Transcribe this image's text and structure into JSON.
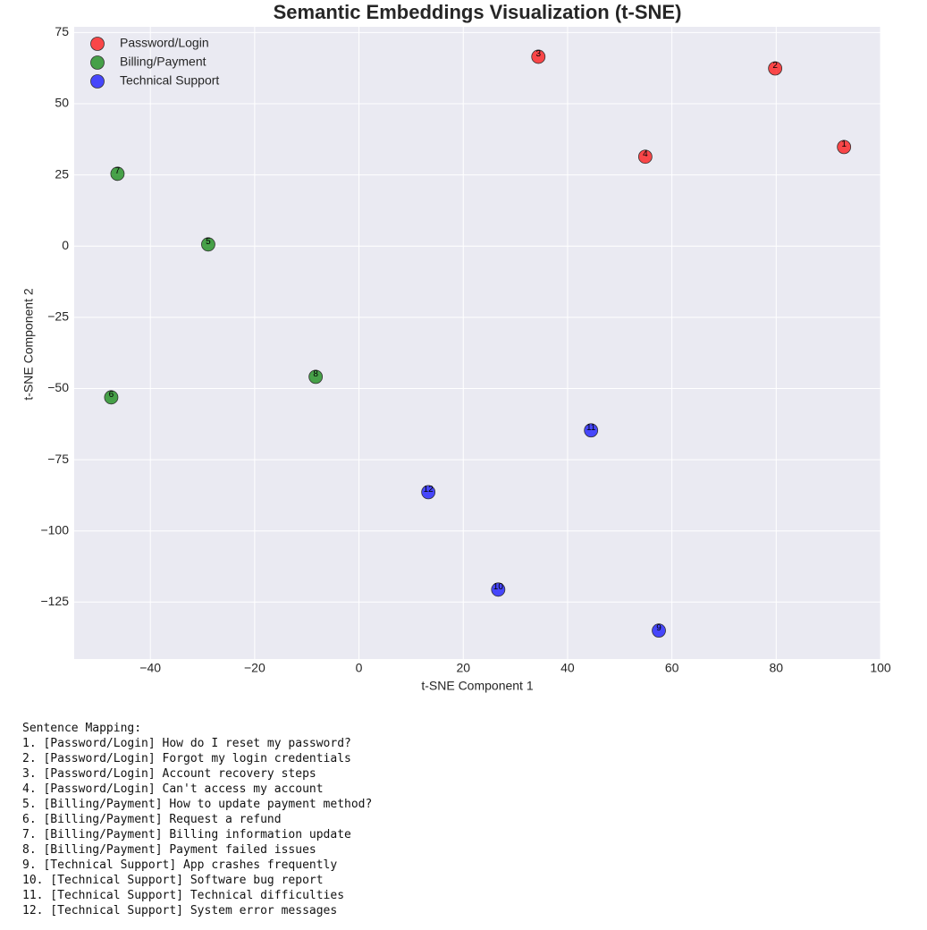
{
  "chart_data": {
    "type": "scatter",
    "title": "Semantic Embeddings Visualization (t-SNE)",
    "xlabel": "t-SNE Component 1",
    "ylabel": "t-SNE Component 2",
    "xlim": [
      -54.6,
      100
    ],
    "ylim": [
      -145,
      77
    ],
    "xticks": [
      {
        "value": -40,
        "label": "−40"
      },
      {
        "value": -20,
        "label": "−20"
      },
      0,
      20,
      40,
      60,
      80,
      100
    ],
    "yticks": [
      {
        "value": -125,
        "label": "−125"
      },
      {
        "value": -100,
        "label": "−100"
      },
      {
        "value": -75,
        "label": "−75"
      },
      {
        "value": -50,
        "label": "−50"
      },
      {
        "value": -25,
        "label": "−25"
      },
      0,
      25,
      50,
      75
    ],
    "grid": true,
    "legend": "upper left",
    "series": [
      {
        "name": "Password/Login",
        "color": "#ff0000",
        "x": [
          93.0,
          79.8,
          34.4,
          54.9
        ],
        "y": [
          34.8,
          62.4,
          66.5,
          31.4
        ],
        "point_labels": [
          "1",
          "2",
          "3",
          "4"
        ]
      },
      {
        "name": "Billing/Payment",
        "color": "#008000",
        "x": [
          -28.9,
          -47.5,
          -46.3,
          -8.3
        ],
        "y": [
          0.6,
          -53.1,
          25.4,
          -45.9
        ],
        "point_labels": [
          "5",
          "6",
          "7",
          "8"
        ]
      },
      {
        "name": "Technical Support",
        "color": "#0000ff",
        "x": [
          57.5,
          26.7,
          44.5,
          13.3
        ],
        "y": [
          -135,
          -120.6,
          -64.7,
          -86.4
        ],
        "point_labels": [
          "9",
          "10",
          "11",
          "12"
        ]
      }
    ]
  },
  "mapping": {
    "title": "Sentence Mapping:",
    "lines": [
      "1. [Password/Login] How do I reset my password?",
      "2. [Password/Login] Forgot my login credentials",
      "3. [Password/Login] Account recovery steps",
      "4. [Password/Login] Can't access my account",
      "5. [Billing/Payment] How to update payment method?",
      "6. [Billing/Payment] Request a refund",
      "7. [Billing/Payment] Billing information update",
      "8. [Billing/Payment] Payment failed issues",
      "9. [Technical Support] App crashes frequently",
      "10. [Technical Support] Software bug report",
      "11. [Technical Support] Technical difficulties",
      "12. [Technical Support] System error messages"
    ]
  }
}
